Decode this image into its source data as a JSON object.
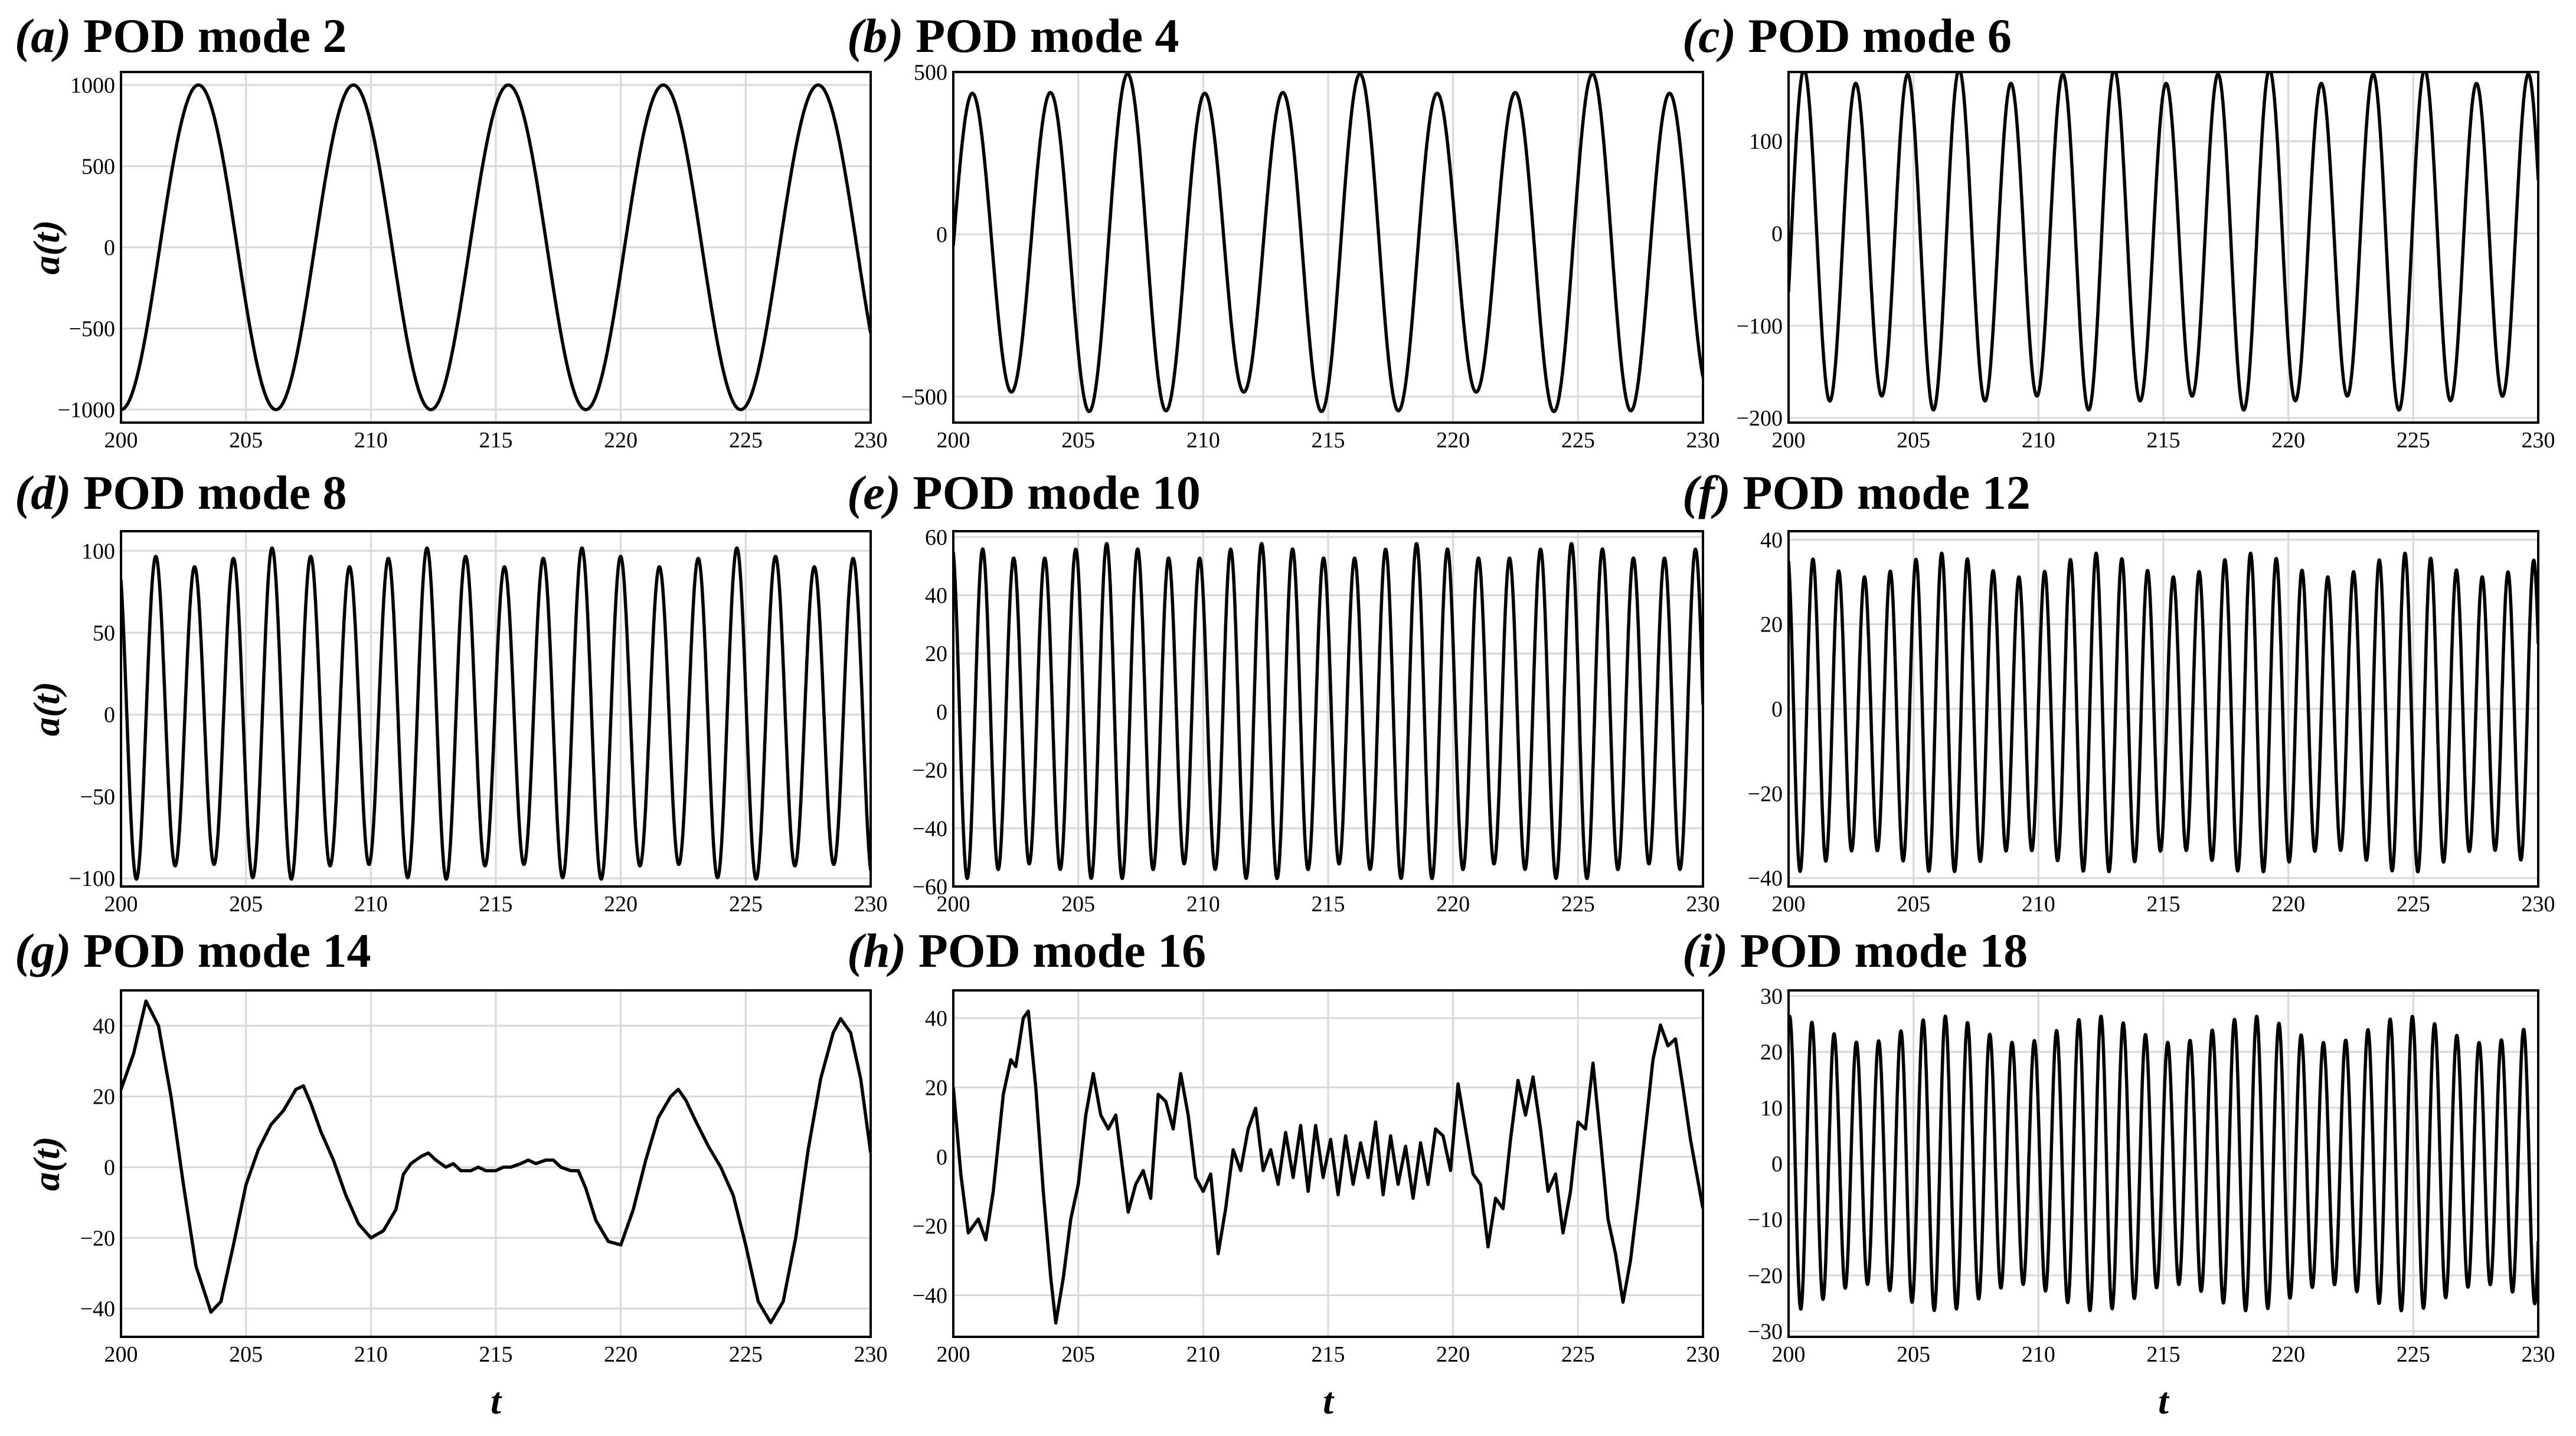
{
  "colors": {
    "line": "#000000",
    "grid": "#d8d8d8",
    "frame": "#000000",
    "background": "#ffffff"
  },
  "chart_data": [
    {
      "type": "line",
      "panel_id": "a",
      "title_prefix": "(a)",
      "title": " POD mode 2",
      "ylabel": "a(t)",
      "xlabel": "",
      "xlim": [
        200,
        230
      ],
      "ylim": [
        -1080,
        1080
      ],
      "xticks": [
        200,
        205,
        210,
        215,
        220,
        225,
        230
      ],
      "yticks": [
        -1000,
        -500,
        0,
        500,
        1000
      ],
      "ytick_labels": [
        "−1000",
        "−500",
        "0",
        "500",
        "1000"
      ],
      "grid": true,
      "series": [
        {
          "signal": {
            "components": [
              {
                "amplitude": 1000,
                "period": 6.2,
                "phase": -0.25
              }
            ],
            "offset": 0,
            "mod_depth": 0,
            "mod_period": 10
          }
        }
      ]
    },
    {
      "type": "line",
      "panel_id": "b",
      "title_prefix": "(b)",
      "title": " POD mode 4",
      "ylabel": "",
      "xlabel": "",
      "xlim": [
        200,
        230
      ],
      "ylim": [
        -580,
        500
      ],
      "xticks": [
        200,
        205,
        210,
        215,
        220,
        225,
        230
      ],
      "yticks": [
        -500,
        0,
        500
      ],
      "ytick_labels": [
        "−500",
        "0",
        "500"
      ],
      "grid": true,
      "series": [
        {
          "signal": {
            "components": [
              {
                "amplitude": 490,
                "period": 3.1,
                "phase": 0.0
              }
            ],
            "offset": -35,
            "mod_depth": 0.08,
            "mod_period": 9.3
          }
        }
      ]
    },
    {
      "type": "line",
      "panel_id": "c",
      "title_prefix": "(c)",
      "title": " POD mode 6",
      "ylabel": "",
      "xlabel": "",
      "xlim": [
        200,
        230
      ],
      "ylim": [
        -205,
        175
      ],
      "xticks": [
        200,
        205,
        210,
        215,
        220,
        225,
        230
      ],
      "yticks": [
        -200,
        -100,
        0,
        100
      ],
      "ytick_labels": [
        "−200",
        "−100",
        "0",
        "100"
      ],
      "grid": true,
      "series": [
        {
          "signal": {
            "components": [
              {
                "amplitude": 177,
                "period": 2.07,
                "phase": -0.05
              }
            ],
            "offset": -6,
            "mod_depth": 0.05,
            "mod_period": 6.2
          }
        }
      ]
    },
    {
      "type": "line",
      "panel_id": "d",
      "title_prefix": "(d)",
      "title": " POD mode 8",
      "ylabel": "a(t)",
      "xlabel": "",
      "xlim": [
        200,
        230
      ],
      "ylim": [
        -105,
        112
      ],
      "xticks": [
        200,
        205,
        210,
        215,
        220,
        225,
        230
      ],
      "yticks": [
        -100,
        -50,
        0,
        50,
        100
      ],
      "ytick_labels": [
        "−100",
        "−50",
        "0",
        "50",
        "100"
      ],
      "grid": true,
      "series": [
        {
          "signal": {
            "components": [
              {
                "amplitude": 96,
                "period": 1.55,
                "phase": 0.35
              }
            ],
            "offset": 0,
            "mod_depth": 0.06,
            "mod_period": 6.2
          }
        }
      ]
    },
    {
      "type": "line",
      "panel_id": "e",
      "title_prefix": "(e)",
      "title": " POD mode 10",
      "ylabel": "",
      "xlabel": "",
      "xlim": [
        200,
        230
      ],
      "ylim": [
        -60,
        62
      ],
      "xticks": [
        200,
        205,
        210,
        215,
        220,
        225,
        230
      ],
      "yticks": [
        -60,
        -40,
        -20,
        0,
        20,
        40,
        60
      ],
      "ytick_labels": [
        "−60",
        "−40",
        "−20",
        "0",
        "20",
        "40",
        "60"
      ],
      "grid": true,
      "series": [
        {
          "signal": {
            "components": [
              {
                "amplitude": 55,
                "period": 1.24,
                "phase": 0.3
              }
            ],
            "offset": 0,
            "mod_depth": 0.05,
            "mod_period": 6.2
          }
        }
      ]
    },
    {
      "type": "line",
      "panel_id": "f",
      "title_prefix": "(f)",
      "title": " POD mode 12",
      "ylabel": "",
      "xlabel": "",
      "xlim": [
        200,
        230
      ],
      "ylim": [
        -42,
        42
      ],
      "xticks": [
        200,
        205,
        210,
        215,
        220,
        225,
        230
      ],
      "yticks": [
        -40,
        -20,
        0,
        20,
        40
      ],
      "ytick_labels": [
        "−40",
        "−20",
        "0",
        "20",
        "40"
      ],
      "grid": true,
      "series": [
        {
          "signal": {
            "components": [
              {
                "amplitude": 35,
                "period": 1.03,
                "phase": 0.3
              }
            ],
            "offset": -1,
            "mod_depth": 0.08,
            "mod_period": 6.2
          }
        }
      ]
    },
    {
      "type": "line",
      "panel_id": "g",
      "title_prefix": "(g)",
      "title": " POD mode 14",
      "ylabel": "a(t)",
      "xlabel": "t",
      "xlim": [
        200,
        230
      ],
      "ylim": [
        -48,
        50
      ],
      "xticks": [
        200,
        205,
        210,
        215,
        220,
        225,
        230
      ],
      "yticks": [
        -40,
        -20,
        0,
        20,
        40
      ],
      "ytick_labels": [
        "−40",
        "−20",
        "0",
        "20",
        "40"
      ],
      "grid": true,
      "series": [
        {
          "points": [
            [
              200,
              22
            ],
            [
              200.5,
              32
            ],
            [
              201,
              47
            ],
            [
              201.5,
              40
            ],
            [
              202,
              20
            ],
            [
              202.5,
              -5
            ],
            [
              203,
              -28
            ],
            [
              203.6,
              -41
            ],
            [
              204,
              -38
            ],
            [
              204.5,
              -22
            ],
            [
              205,
              -5
            ],
            [
              205.5,
              5
            ],
            [
              206,
              12
            ],
            [
              206.5,
              16
            ],
            [
              207,
              22
            ],
            [
              207.3,
              23
            ],
            [
              207.6,
              18
            ],
            [
              208,
              10
            ],
            [
              208.5,
              2
            ],
            [
              209,
              -8
            ],
            [
              209.5,
              -16
            ],
            [
              210,
              -20
            ],
            [
              210.5,
              -18
            ],
            [
              211,
              -12
            ],
            [
              211.3,
              -2
            ],
            [
              211.6,
              1
            ],
            [
              212,
              3
            ],
            [
              212.3,
              4
            ],
            [
              212.6,
              2
            ],
            [
              213,
              0
            ],
            [
              213.3,
              1
            ],
            [
              213.6,
              -1
            ],
            [
              214,
              -1
            ],
            [
              214.3,
              0
            ],
            [
              214.6,
              -1
            ],
            [
              215,
              -1
            ],
            [
              215.3,
              0
            ],
            [
              215.6,
              0
            ],
            [
              216,
              1
            ],
            [
              216.3,
              2
            ],
            [
              216.6,
              1
            ],
            [
              217,
              2
            ],
            [
              217.3,
              2
            ],
            [
              217.6,
              0
            ],
            [
              218,
              -1
            ],
            [
              218.3,
              -1
            ],
            [
              218.6,
              -6
            ],
            [
              219,
              -15
            ],
            [
              219.5,
              -21
            ],
            [
              220,
              -22
            ],
            [
              220.5,
              -12
            ],
            [
              221,
              2
            ],
            [
              221.5,
              14
            ],
            [
              222,
              20
            ],
            [
              222.3,
              22
            ],
            [
              222.6,
              19
            ],
            [
              223,
              13
            ],
            [
              223.5,
              6
            ],
            [
              224,
              0
            ],
            [
              224.5,
              -8
            ],
            [
              225,
              -22
            ],
            [
              225.5,
              -38
            ],
            [
              226,
              -44
            ],
            [
              226.5,
              -38
            ],
            [
              227,
              -20
            ],
            [
              227.5,
              5
            ],
            [
              228,
              25
            ],
            [
              228.5,
              38
            ],
            [
              228.8,
              42
            ],
            [
              229.2,
              38
            ],
            [
              229.6,
              25
            ],
            [
              230,
              4
            ]
          ]
        }
      ]
    },
    {
      "type": "line",
      "panel_id": "h",
      "title_prefix": "(h)",
      "title": " POD mode 16",
      "ylabel": "",
      "xlabel": "t",
      "xlim": [
        200,
        230
      ],
      "ylim": [
        -52,
        48
      ],
      "xticks": [
        200,
        205,
        210,
        215,
        220,
        225,
        230
      ],
      "yticks": [
        -40,
        -20,
        0,
        20,
        40
      ],
      "ytick_labels": [
        "−40",
        "−20",
        "0",
        "20",
        "40"
      ],
      "grid": true,
      "series": [
        {
          "points": [
            [
              200,
              20
            ],
            [
              200.3,
              -5
            ],
            [
              200.6,
              -22
            ],
            [
              201,
              -18
            ],
            [
              201.3,
              -24
            ],
            [
              201.6,
              -10
            ],
            [
              202,
              18
            ],
            [
              202.3,
              28
            ],
            [
              202.5,
              26
            ],
            [
              202.8,
              40
            ],
            [
              203,
              42
            ],
            [
              203.3,
              20
            ],
            [
              203.6,
              -10
            ],
            [
              203.9,
              -35
            ],
            [
              204.1,
              -48
            ],
            [
              204.4,
              -35
            ],
            [
              204.7,
              -18
            ],
            [
              205,
              -8
            ],
            [
              205.3,
              12
            ],
            [
              205.6,
              24
            ],
            [
              205.9,
              12
            ],
            [
              206.2,
              8
            ],
            [
              206.5,
              12
            ],
            [
              206.8,
              -5
            ],
            [
              207,
              -16
            ],
            [
              207.3,
              -8
            ],
            [
              207.6,
              -4
            ],
            [
              207.9,
              -12
            ],
            [
              208.2,
              18
            ],
            [
              208.5,
              16
            ],
            [
              208.8,
              8
            ],
            [
              209.1,
              24
            ],
            [
              209.4,
              12
            ],
            [
              209.7,
              -6
            ],
            [
              210,
              -10
            ],
            [
              210.3,
              -5
            ],
            [
              210.6,
              -28
            ],
            [
              210.9,
              -15
            ],
            [
              211.2,
              2
            ],
            [
              211.5,
              -4
            ],
            [
              211.8,
              8
            ],
            [
              212.1,
              14
            ],
            [
              212.4,
              -4
            ],
            [
              212.7,
              2
            ],
            [
              213,
              -8
            ],
            [
              213.3,
              7
            ],
            [
              213.6,
              -6
            ],
            [
              213.9,
              9
            ],
            [
              214.2,
              -10
            ],
            [
              214.5,
              9
            ],
            [
              214.8,
              -6
            ],
            [
              215.1,
              5
            ],
            [
              215.4,
              -11
            ],
            [
              215.7,
              6
            ],
            [
              216,
              -8
            ],
            [
              216.3,
              4
            ],
            [
              216.6,
              -6
            ],
            [
              216.9,
              10
            ],
            [
              217.2,
              -11
            ],
            [
              217.5,
              6
            ],
            [
              217.8,
              -8
            ],
            [
              218.1,
              3
            ],
            [
              218.4,
              -12
            ],
            [
              218.7,
              4
            ],
            [
              219,
              -8
            ],
            [
              219.3,
              8
            ],
            [
              219.6,
              6
            ],
            [
              219.9,
              -4
            ],
            [
              220.2,
              21
            ],
            [
              220.5,
              8
            ],
            [
              220.8,
              -5
            ],
            [
              221.1,
              -8
            ],
            [
              221.4,
              -26
            ],
            [
              221.7,
              -12
            ],
            [
              222,
              -15
            ],
            [
              222.3,
              5
            ],
            [
              222.6,
              22
            ],
            [
              222.9,
              12
            ],
            [
              223.2,
              23
            ],
            [
              223.5,
              8
            ],
            [
              223.8,
              -10
            ],
            [
              224.1,
              -5
            ],
            [
              224.4,
              -22
            ],
            [
              224.7,
              -10
            ],
            [
              225,
              10
            ],
            [
              225.3,
              8
            ],
            [
              225.6,
              27
            ],
            [
              225.9,
              5
            ],
            [
              226.2,
              -18
            ],
            [
              226.5,
              -28
            ],
            [
              226.8,
              -42
            ],
            [
              227.1,
              -30
            ],
            [
              227.4,
              -12
            ],
            [
              227.7,
              8
            ],
            [
              228,
              28
            ],
            [
              228.3,
              38
            ],
            [
              228.6,
              32
            ],
            [
              228.9,
              34
            ],
            [
              229.2,
              20
            ],
            [
              229.5,
              5
            ],
            [
              230,
              -15
            ]
          ]
        }
      ]
    },
    {
      "type": "line",
      "panel_id": "i",
      "title_prefix": "(i)",
      "title": " POD mode 18",
      "ylabel": "",
      "xlabel": "t",
      "xlim": [
        200,
        230
      ],
      "ylim": [
        -31,
        31
      ],
      "xticks": [
        200,
        205,
        210,
        215,
        220,
        225,
        230
      ],
      "yticks": [
        -30,
        -20,
        -10,
        0,
        10,
        20,
        30
      ],
      "ytick_labels": [
        "−30",
        "−20",
        "−10",
        "0",
        "10",
        "20",
        "30"
      ],
      "grid": true,
      "series": [
        {
          "signal": {
            "components": [
              {
                "amplitude": 24,
                "period": 0.89,
                "phase": 0.2
              }
            ],
            "offset": 0,
            "mod_depth": 0.1,
            "mod_period": 6.2
          }
        }
      ]
    }
  ]
}
